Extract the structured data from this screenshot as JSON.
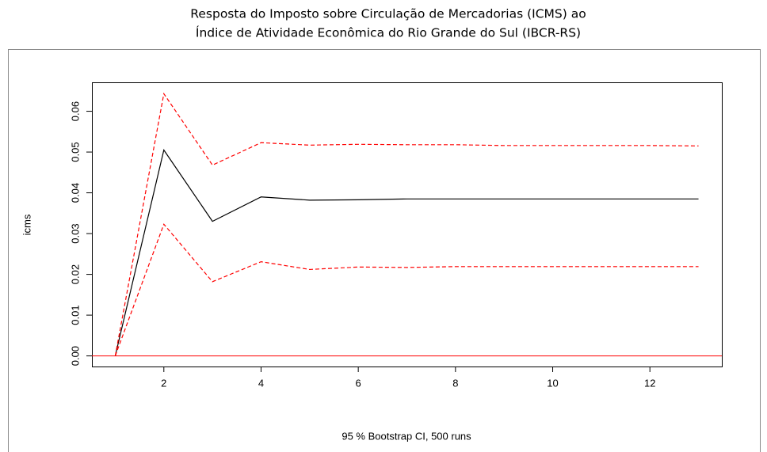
{
  "chart_data": {
    "type": "line",
    "title": [
      "Resposta do Imposto sobre Circulação de Mercadorias (ICMS) ao",
      "Índice de Atividade Econômica do Rio Grande do Sul (IBCR-RS)"
    ],
    "xlabel": "95 % Bootstrap CI,  500 runs",
    "ylabel": "icms",
    "x": [
      1,
      2,
      3,
      4,
      5,
      6,
      7,
      8,
      9,
      10,
      11,
      12,
      13
    ],
    "series": [
      {
        "color": "#000000",
        "dashed": false,
        "values": [
          0,
          0.0505,
          0.033,
          0.039,
          0.0382,
          0.0383,
          0.0385,
          0.0385,
          0.0385,
          0.0385,
          0.0385,
          0.0385,
          0.0385
        ]
      },
      {
        "color": "#ff0000",
        "dashed": true,
        "values": [
          0,
          0.0643,
          0.0468,
          0.0523,
          0.0517,
          0.0519,
          0.0518,
          0.0518,
          0.0516,
          0.0516,
          0.0516,
          0.0516,
          0.0515
        ]
      },
      {
        "color": "#ff0000",
        "dashed": true,
        "values": [
          0,
          0.0323,
          0.0182,
          0.0231,
          0.0212,
          0.0218,
          0.0217,
          0.0219,
          0.0219,
          0.0219,
          0.0219,
          0.0219,
          0.0219
        ]
      }
    ],
    "hline": {
      "value": 0,
      "color": "#ff0000"
    },
    "xlim": [
      0.52,
      13.48
    ],
    "xticks": [
      2,
      4,
      6,
      8,
      10,
      12
    ],
    "ylim": [
      -0.0026,
      0.0671
    ],
    "yticks": [
      {
        "value": 0,
        "label": "0.00"
      },
      0.01,
      0.02,
      0.03,
      0.04,
      0.05,
      0.06
    ]
  }
}
